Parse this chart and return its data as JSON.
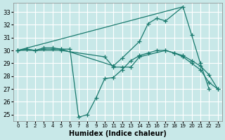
{
  "xlabel": "Humidex (Indice chaleur)",
  "bg_color": "#c8e8e8",
  "grid_color": "#ffffff",
  "line_color": "#1a7a6e",
  "xlim": [
    -0.5,
    23.5
  ],
  "ylim": [
    24.5,
    33.7
  ],
  "xticks": [
    0,
    1,
    2,
    3,
    4,
    5,
    6,
    7,
    8,
    9,
    10,
    11,
    12,
    13,
    14,
    15,
    16,
    17,
    18,
    19,
    20,
    21,
    22,
    23
  ],
  "yticks": [
    25,
    26,
    27,
    28,
    29,
    30,
    31,
    32,
    33
  ],
  "lines": [
    {
      "x": [
        0,
        19
      ],
      "y": [
        30.0,
        33.4
      ],
      "marker": false
    },
    {
      "x": [
        0,
        1,
        2,
        3,
        4,
        5,
        11,
        12,
        14,
        15,
        16,
        17,
        19,
        20,
        21,
        22
      ],
      "y": [
        30.0,
        30.1,
        30.0,
        30.2,
        30.2,
        30.1,
        28.8,
        29.4,
        30.7,
        32.1,
        32.5,
        32.3,
        33.4,
        31.2,
        29.0,
        27.0
      ],
      "marker": true
    },
    {
      "x": [
        0,
        1,
        2,
        3,
        4,
        5,
        6,
        7,
        8,
        9,
        10,
        11,
        12,
        13,
        14,
        15,
        16,
        17,
        18,
        19,
        20,
        21,
        22,
        23
      ],
      "y": [
        30.0,
        30.1,
        30.0,
        30.1,
        30.1,
        30.1,
        30.1,
        24.8,
        25.0,
        26.3,
        27.8,
        27.9,
        28.5,
        29.2,
        29.6,
        29.8,
        30.0,
        30.0,
        29.8,
        29.6,
        29.2,
        28.8,
        28.1,
        27.0
      ],
      "marker": true
    },
    {
      "x": [
        0,
        5,
        10,
        11,
        12,
        13,
        14,
        17,
        18,
        19,
        20,
        21,
        22,
        23
      ],
      "y": [
        30.0,
        30.0,
        29.5,
        28.7,
        28.7,
        28.7,
        29.5,
        30.0,
        29.8,
        29.5,
        29.0,
        28.5,
        27.5,
        27.0
      ],
      "marker": true
    }
  ]
}
